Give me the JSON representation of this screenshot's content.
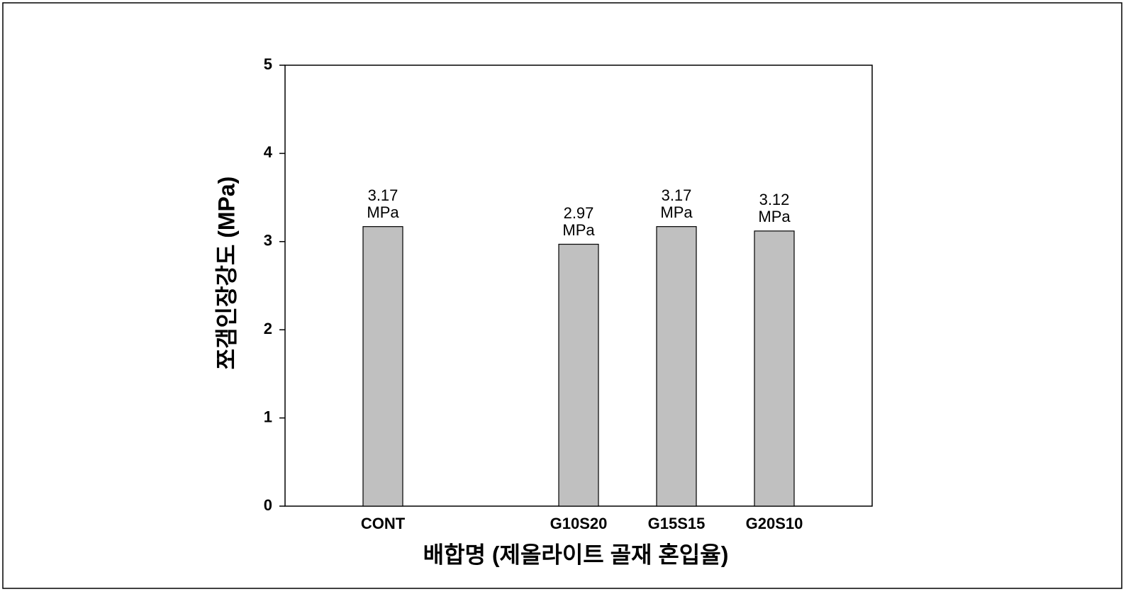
{
  "chart_data": {
    "type": "bar",
    "xlabel": "배합명 (제올라이트 골재 혼입율)",
    "ylabel": "쪼갬인장강도 (MPa)",
    "categories": [
      "CONT",
      null,
      "G10S20",
      "G15S15",
      "G20S10"
    ],
    "values": [
      3.17,
      null,
      2.97,
      3.17,
      3.12
    ],
    "value_labels": [
      "3.17 MPa",
      null,
      "2.97 MPa",
      "3.17 MPa",
      "3.12 MPa"
    ],
    "color": "#c0c0c0",
    "ylim": [
      0,
      5
    ],
    "yticks": [
      0,
      1,
      2,
      3,
      4,
      5
    ],
    "grid": false
  }
}
